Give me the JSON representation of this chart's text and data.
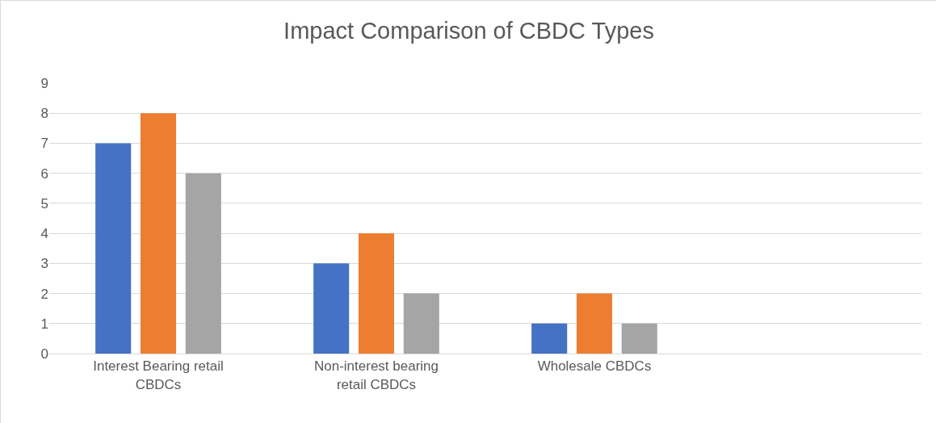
{
  "chart_data": {
    "type": "bar",
    "title": "Impact Comparison of CBDC Types",
    "categories": [
      "Interest Bearing retail CBDCs",
      "Non-interest bearing retail CBDCs",
      "Wholesale CBDCs",
      null
    ],
    "series": [
      {
        "color": "#4472c4",
        "values": [
          7,
          3,
          1,
          null
        ]
      },
      {
        "color": "#ed7d31",
        "values": [
          8,
          4,
          2,
          null
        ]
      },
      {
        "color": "#a5a5a5",
        "values": [
          6,
          2,
          1,
          null
        ]
      }
    ],
    "ylim": [
      0,
      9
    ],
    "yticks": [
      0,
      1,
      2,
      3,
      4,
      5,
      6,
      7,
      8,
      9
    ],
    "grid": "y",
    "legend": false
  }
}
